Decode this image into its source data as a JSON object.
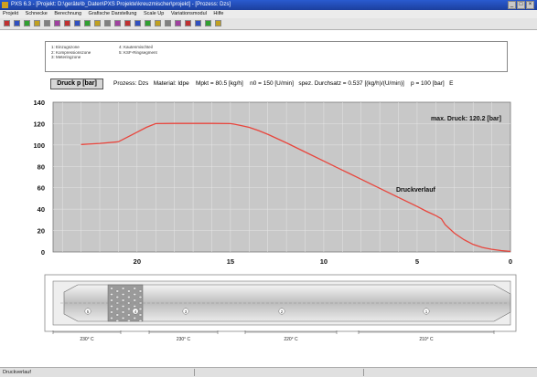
{
  "window": {
    "title": "PXS 6.3 - [Projekt: D:\\geräte\\b_Daten\\PXS Projekte\\kreuzmischer\\projekt] - [Prozess: Dzs]",
    "controls": [
      "_",
      "□",
      "×"
    ]
  },
  "menu": [
    "Projekt",
    "Schnecke",
    "Berechnung",
    "Grafische Darstellung",
    "Scale Up",
    "Variationsmodul",
    "Hilfe"
  ],
  "toolbar": {
    "icon_count": 22
  },
  "info": {
    "col1": [
      "1: Einzugszone",
      "2: Kompressionszone",
      "3: Meteringzone"
    ],
    "col2": [
      "4: Kautenmischteil",
      "5: KSF-Ringsegment"
    ]
  },
  "param_row": {
    "button": "Druck p [bar]",
    "prozess": "Prozess: Dzs",
    "material": "Material: ldpe",
    "mpkt": "Mpkt = 80.5 [kg/h]",
    "n0": "n0 = 150 [U/min]",
    "durchsatz": "spez. Durchsatz = 0.537 [(kg/h)/(U/min)]",
    "p": "p = 100 [bar]",
    "tail": "E"
  },
  "chart_data": {
    "type": "line",
    "title": "",
    "xlabel": "",
    "ylabel": "",
    "x_reversed": true,
    "xlim": [
      24.5,
      0
    ],
    "ylim": [
      0,
      140
    ],
    "xticks": [
      20,
      15,
      10,
      5,
      0
    ],
    "yticks": [
      0,
      20,
      40,
      60,
      80,
      100,
      120,
      140
    ],
    "grid": true,
    "series": [
      {
        "name": "Druckverlauf",
        "color": "#e8453c",
        "x": [
          23,
          22,
          21,
          20.5,
          20,
          19.5,
          19,
          18,
          17,
          16,
          15,
          14.8,
          14.5,
          14,
          13.5,
          13,
          12,
          11,
          10,
          9,
          8,
          7,
          6,
          5,
          4.5,
          4,
          3.7,
          3.5,
          3,
          2.5,
          2,
          1.5,
          1,
          0.5,
          0
        ],
        "y": [
          100.5,
          101.5,
          103,
          107.5,
          112,
          116.5,
          120,
          120.2,
          120.2,
          120.2,
          120,
          119.5,
          118.5,
          116.5,
          113.5,
          110,
          102,
          93.5,
          85,
          76.5,
          68,
          59.5,
          51,
          42.5,
          38,
          34,
          31,
          25.5,
          17.5,
          11.5,
          7,
          4.2,
          2.5,
          1.3,
          0.5
        ]
      }
    ],
    "annotations": [
      {
        "text": "max. Druck: 120.2 [bar]"
      },
      {
        "text": "Druckverlauf"
      }
    ]
  },
  "barrel": {
    "zone_labels": [
      "5",
      "4",
      "3",
      "2",
      "1"
    ],
    "temperatures": [
      "230° C",
      "230° C",
      "220° C",
      "210° C"
    ]
  },
  "status": {
    "text": "Druckverlauf"
  }
}
